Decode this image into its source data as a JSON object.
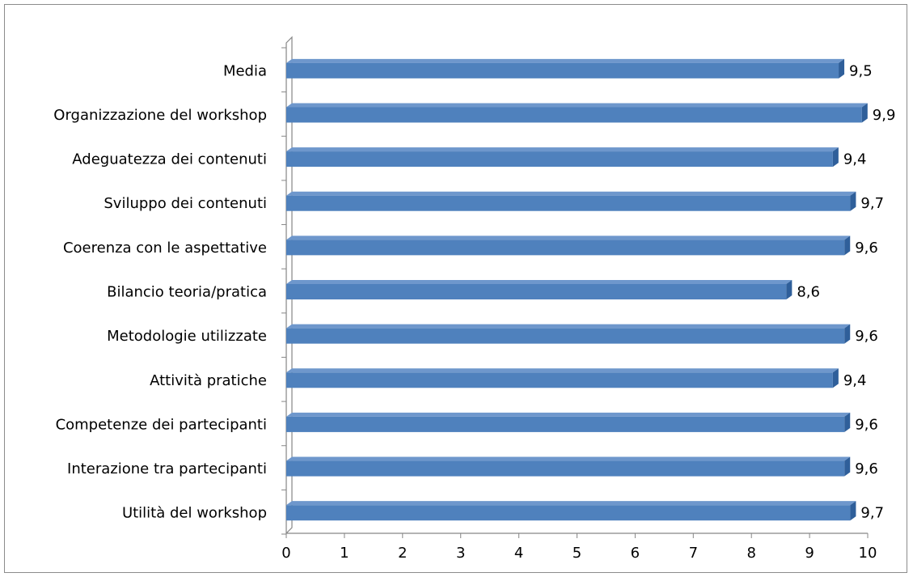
{
  "chart_data": {
    "type": "bar",
    "orientation": "horizontal",
    "title": "",
    "xlabel": "",
    "ylabel": "",
    "categories": [
      "Media",
      "Organizzazione del workshop",
      "Adeguatezza dei contenuti",
      "Sviluppo dei contenuti",
      "Coerenza con le aspettative",
      "Bilancio teoria/pratica",
      "Metodologie utilizzate",
      "Attività pratiche",
      "Competenze dei partecipanti",
      "Interazione tra partecipanti",
      "Utilità del workshop"
    ],
    "values": [
      9.5,
      9.9,
      9.4,
      9.7,
      9.6,
      8.6,
      9.6,
      9.4,
      9.6,
      9.6,
      9.7
    ],
    "data_labels": [
      "9,5",
      "9,9",
      "9,4",
      "9,7",
      "9,6",
      "8,6",
      "9,6",
      "9,4",
      "9,6",
      "9,6",
      "9,7"
    ],
    "xlim": [
      0,
      10
    ],
    "x_ticks": [
      0,
      1,
      2,
      3,
      4,
      5,
      6,
      7,
      8,
      9,
      10
    ],
    "x_tick_labels": [
      "0",
      "1",
      "2",
      "3",
      "4",
      "5",
      "6",
      "7",
      "8",
      "9",
      "10"
    ],
    "grid": false,
    "legend": "none",
    "style": "3d",
    "colors": {
      "bar_front": "#4F81BD",
      "bar_top": "#6E97CC",
      "bar_side": "#2F5F9A",
      "axis": "#868686"
    }
  }
}
